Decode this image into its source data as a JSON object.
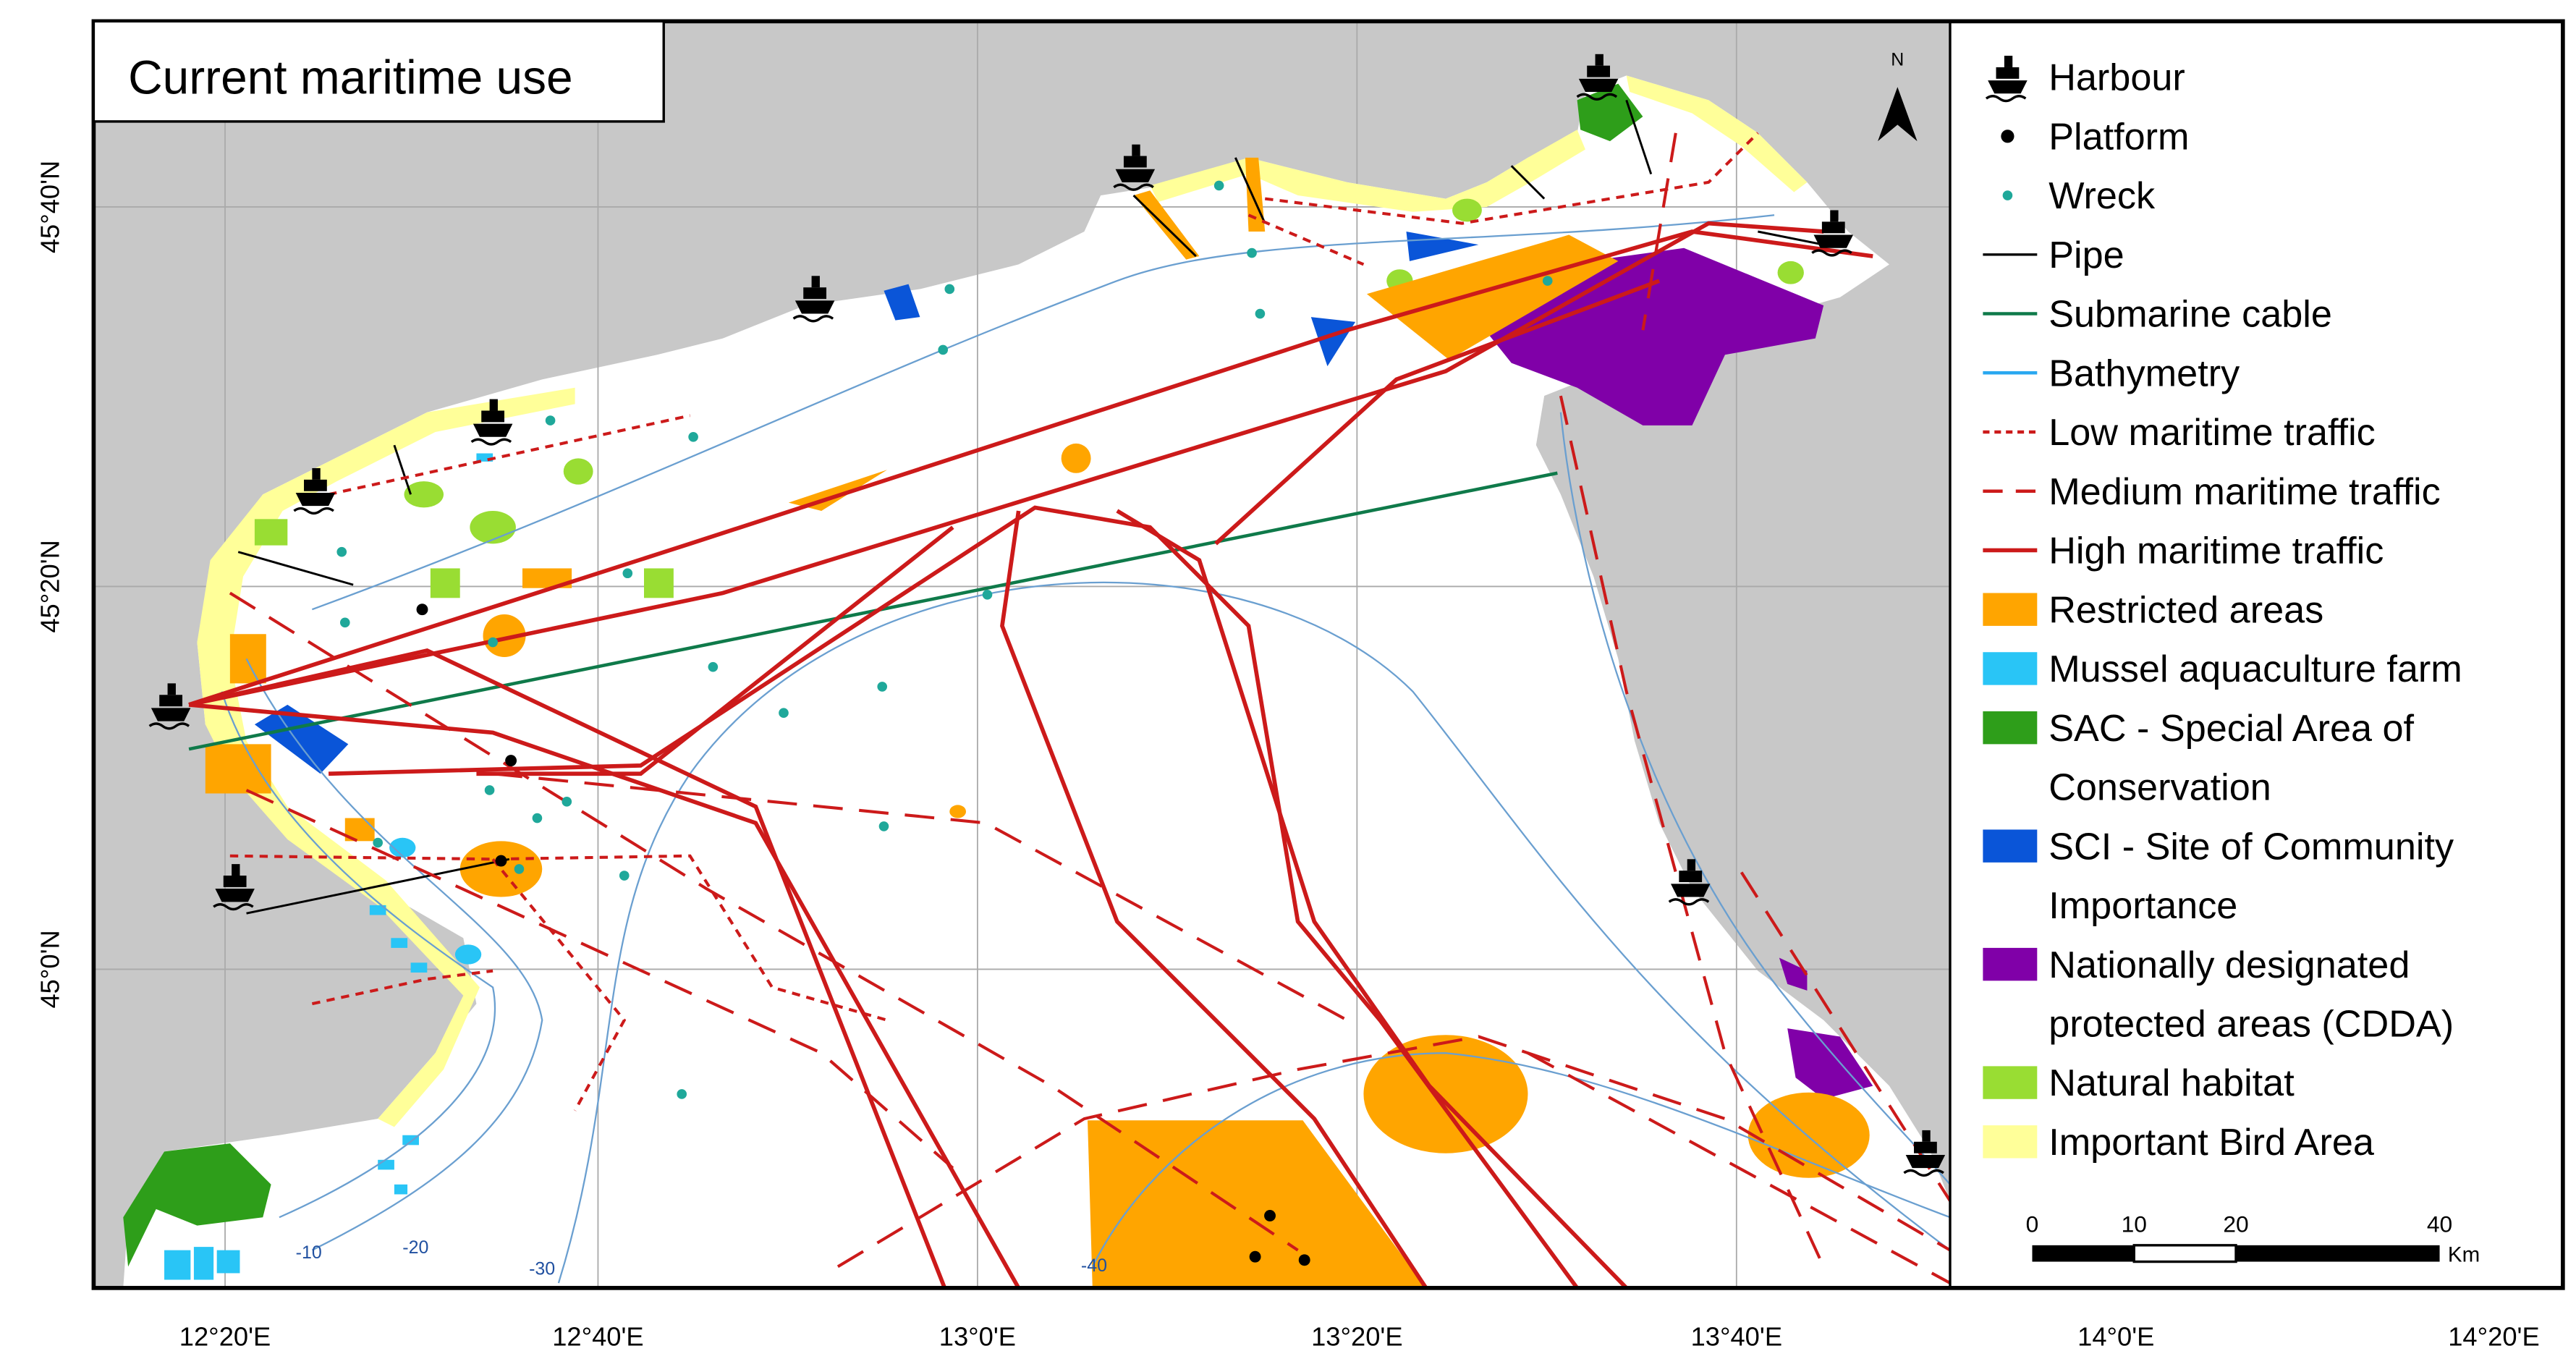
{
  "title": "Current maritime use",
  "north": "N",
  "legend": [
    {
      "lines": [
        "Harbour"
      ]
    },
    {
      "lines": [
        "Platform"
      ]
    },
    {
      "lines": [
        "Wreck"
      ]
    },
    {
      "lines": [
        "Pipe"
      ]
    },
    {
      "lines": [
        "Submarine cable"
      ]
    },
    {
      "lines": [
        "Bathymetry"
      ]
    },
    {
      "lines": [
        "Low maritime traffic"
      ]
    },
    {
      "lines": [
        "Medium maritime traffic"
      ]
    },
    {
      "lines": [
        "High maritime traffic"
      ]
    },
    {
      "lines": [
        "Restricted areas"
      ]
    },
    {
      "lines": [
        "Mussel aquaculture farm"
      ]
    },
    {
      "lines": [
        "SAC - Special Area of",
        "Conservation"
      ]
    },
    {
      "lines": [
        "SCI - Site of Community",
        "Importance"
      ]
    },
    {
      "lines": [
        "Nationally designated",
        "protected areas (CDDA)"
      ]
    },
    {
      "lines": [
        "Natural habitat"
      ]
    },
    {
      "lines": [
        "Important Bird Area"
      ]
    }
  ],
  "longitude_labels": [
    "12°20'E",
    "12°40'E",
    "13°0'E",
    "13°20'E",
    "13°40'E",
    "14°0'E",
    "14°20'E"
  ],
  "latitude_labels": [
    "45°40'N",
    "45°20'N",
    "45°0'N"
  ],
  "bathymetry_labels": [
    "-10",
    "-20",
    "-30",
    "-40"
  ],
  "scale_bar": {
    "labels": [
      "0",
      "10",
      "20",
      "40"
    ],
    "unit": "Km"
  }
}
